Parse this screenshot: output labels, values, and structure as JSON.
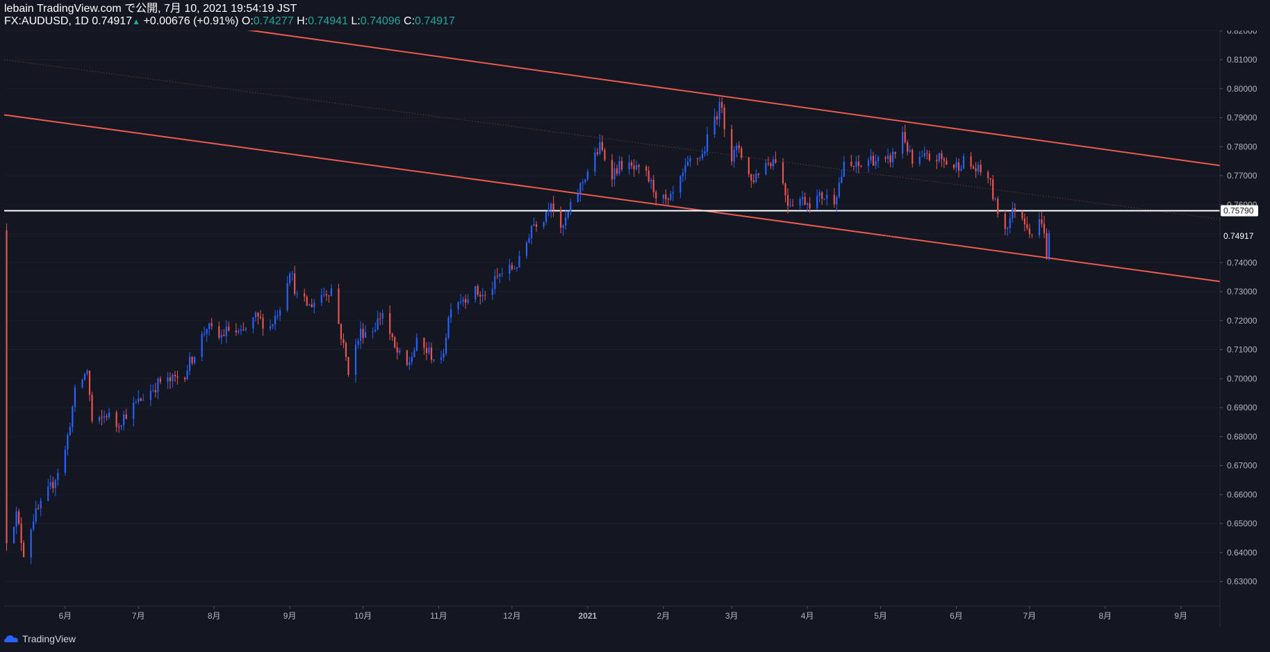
{
  "header": {
    "publish_line": "lebain TradingView.com で公開, 7月 10, 2021 19:54:19 JST",
    "symbol": "FX:AUDUSD, 1D",
    "last": "0.74917",
    "change": "+0.00676 (+0.91%)",
    "o_label": "O:",
    "o_value": "0.74277",
    "h_label": "H:",
    "h_value": "0.74941",
    "l_label": "L:",
    "l_value": "0.74096",
    "c_label": "C:",
    "c_value": "0.74917"
  },
  "footer": {
    "brand": "TradingView"
  },
  "colors": {
    "background": "#131722",
    "up": "#2962ff",
    "down": "#ef5350",
    "channel": "#f05a4f",
    "horizontal_line": "#ffffff",
    "axis_text": "#b2b5be",
    "ohlc_value": "#26a69a"
  },
  "chart_data": {
    "type": "candlestick",
    "symbol": "FX:AUDUSD",
    "interval": "1D",
    "x_labels": [
      {
        "label": "6月",
        "date": "2020-06-01"
      },
      {
        "label": "7月",
        "date": "2020-07-01"
      },
      {
        "label": "8月",
        "date": "2020-08-01"
      },
      {
        "label": "9月",
        "date": "2020-09-01"
      },
      {
        "label": "10月",
        "date": "2020-10-01"
      },
      {
        "label": "11月",
        "date": "2020-11-01"
      },
      {
        "label": "12月",
        "date": "2020-12-01"
      },
      {
        "label": "2021",
        "date": "2021-01-01"
      },
      {
        "label": "2月",
        "date": "2021-02-01"
      },
      {
        "label": "3月",
        "date": "2021-03-01"
      },
      {
        "label": "4月",
        "date": "2021-04-01"
      },
      {
        "label": "5月",
        "date": "2021-05-01"
      },
      {
        "label": "6月",
        "date": "2021-06-01"
      },
      {
        "label": "7月",
        "date": "2021-07-01"
      },
      {
        "label": "8月",
        "date": "2021-08-01"
      },
      {
        "label": "9月",
        "date": "2021-09-01"
      }
    ],
    "y_ticks": [
      "0.82000",
      "0.81000",
      "0.80000",
      "0.79000",
      "0.78000",
      "0.77000",
      "0.76000",
      "0.75000",
      "0.74000",
      "0.73000",
      "0.72000",
      "0.71000",
      "0.70000",
      "0.69000",
      "0.68000",
      "0.67000",
      "0.66000",
      "0.65000",
      "0.64000",
      "0.63000"
    ],
    "ylim": [
      0.6215,
      0.8215
    ],
    "xlim": [
      "2020-05-07",
      "2021-09-17"
    ],
    "price_path": [
      [
        "2020-05-08",
        0.645
      ],
      [
        "2020-05-12",
        0.653
      ],
      [
        "2020-05-15",
        0.64
      ],
      [
        "2020-05-19",
        0.652
      ],
      [
        "2020-05-22",
        0.656
      ],
      [
        "2020-05-27",
        0.664
      ],
      [
        "2020-06-01",
        0.675
      ],
      [
        "2020-06-05",
        0.695
      ],
      [
        "2020-06-10",
        0.703
      ],
      [
        "2020-06-12",
        0.685
      ],
      [
        "2020-06-15",
        0.685
      ],
      [
        "2020-06-18",
        0.688
      ],
      [
        "2020-06-22",
        0.684
      ],
      [
        "2020-06-26",
        0.688
      ],
      [
        "2020-07-01",
        0.692
      ],
      [
        "2020-07-06",
        0.696
      ],
      [
        "2020-07-10",
        0.699
      ],
      [
        "2020-07-14",
        0.699
      ],
      [
        "2020-07-20",
        0.702
      ],
      [
        "2020-07-24",
        0.709
      ],
      [
        "2020-07-29",
        0.718
      ],
      [
        "2020-08-03",
        0.714
      ],
      [
        "2020-08-07",
        0.717
      ],
      [
        "2020-08-12",
        0.715
      ],
      [
        "2020-08-18",
        0.721
      ],
      [
        "2020-08-24",
        0.718
      ],
      [
        "2020-08-28",
        0.725
      ],
      [
        "2020-09-01",
        0.738
      ],
      [
        "2020-09-04",
        0.728
      ],
      [
        "2020-09-09",
        0.725
      ],
      [
        "2020-09-14",
        0.729
      ],
      [
        "2020-09-18",
        0.731
      ],
      [
        "2020-09-22",
        0.715
      ],
      [
        "2020-09-25",
        0.703
      ],
      [
        "2020-09-30",
        0.716
      ],
      [
        "2020-10-05",
        0.717
      ],
      [
        "2020-10-09",
        0.723
      ],
      [
        "2020-10-14",
        0.71
      ],
      [
        "2020-10-19",
        0.704
      ],
      [
        "2020-10-23",
        0.712
      ],
      [
        "2020-10-28",
        0.709
      ],
      [
        "2020-11-02",
        0.705
      ],
      [
        "2020-11-06",
        0.726
      ],
      [
        "2020-11-11",
        0.728
      ],
      [
        "2020-11-16",
        0.73
      ],
      [
        "2020-11-20",
        0.728
      ],
      [
        "2020-11-26",
        0.736
      ],
      [
        "2020-12-01",
        0.738
      ],
      [
        "2020-12-05",
        0.741
      ],
      [
        "2020-12-09",
        0.753
      ],
      [
        "2020-12-14",
        0.756
      ],
      [
        "2020-12-17",
        0.762
      ],
      [
        "2020-12-21",
        0.75
      ],
      [
        "2020-12-24",
        0.757
      ],
      [
        "2020-12-31",
        0.77
      ],
      [
        "2021-01-06",
        0.78
      ],
      [
        "2021-01-11",
        0.771
      ],
      [
        "2021-01-15",
        0.774
      ],
      [
        "2021-01-20",
        0.772
      ],
      [
        "2021-01-25",
        0.77
      ],
      [
        "2021-01-29",
        0.764
      ],
      [
        "2021-02-03",
        0.76
      ],
      [
        "2021-02-08",
        0.768
      ],
      [
        "2021-02-12",
        0.775
      ],
      [
        "2021-02-17",
        0.777
      ],
      [
        "2021-02-22",
        0.79
      ],
      [
        "2021-02-25",
        0.795
      ],
      [
        "2021-02-28",
        0.775
      ],
      [
        "2021-03-04",
        0.78
      ],
      [
        "2021-03-09",
        0.768
      ],
      [
        "2021-03-14",
        0.774
      ],
      [
        "2021-03-19",
        0.776
      ],
      [
        "2021-03-24",
        0.761
      ],
      [
        "2021-03-29",
        0.762
      ],
      [
        "2021-04-02",
        0.761
      ],
      [
        "2021-04-07",
        0.763
      ],
      [
        "2021-04-12",
        0.762
      ],
      [
        "2021-04-16",
        0.773
      ],
      [
        "2021-04-22",
        0.773
      ],
      [
        "2021-04-27",
        0.776
      ],
      [
        "2021-05-03",
        0.774
      ],
      [
        "2021-05-07",
        0.778
      ],
      [
        "2021-05-10",
        0.785
      ],
      [
        "2021-05-14",
        0.774
      ],
      [
        "2021-05-19",
        0.776
      ],
      [
        "2021-05-25",
        0.776
      ],
      [
        "2021-05-31",
        0.773
      ],
      [
        "2021-06-04",
        0.775
      ],
      [
        "2021-06-09",
        0.772
      ],
      [
        "2021-06-14",
        0.77
      ],
      [
        "2021-06-17",
        0.76
      ],
      [
        "2021-06-21",
        0.752
      ],
      [
        "2021-06-25",
        0.759
      ],
      [
        "2021-06-29",
        0.755
      ],
      [
        "2021-07-02",
        0.75
      ],
      [
        "2021-07-06",
        0.755
      ],
      [
        "2021-07-08",
        0.743
      ],
      [
        "2021-07-09",
        0.7492
      ]
    ],
    "annotations": [
      {
        "kind": "trendline",
        "name": "channel upper",
        "from": [
          "2020-07-31",
          0.822
        ],
        "to": [
          "2021-09-17",
          0.7735
        ]
      },
      {
        "kind": "trendline",
        "name": "channel lower",
        "from": [
          "2020-05-07",
          0.791
        ],
        "to": [
          "2021-09-17",
          0.7335
        ]
      },
      {
        "kind": "trendline",
        "name": "midline (dotted)",
        "from": [
          "2020-05-07",
          0.81
        ],
        "to": [
          "2021-09-17",
          0.755
        ]
      },
      {
        "kind": "horizontal",
        "value": 0.7579,
        "label": "0.75790"
      }
    ],
    "last_price": {
      "value": 0.74917,
      "label": "0.74917"
    }
  }
}
